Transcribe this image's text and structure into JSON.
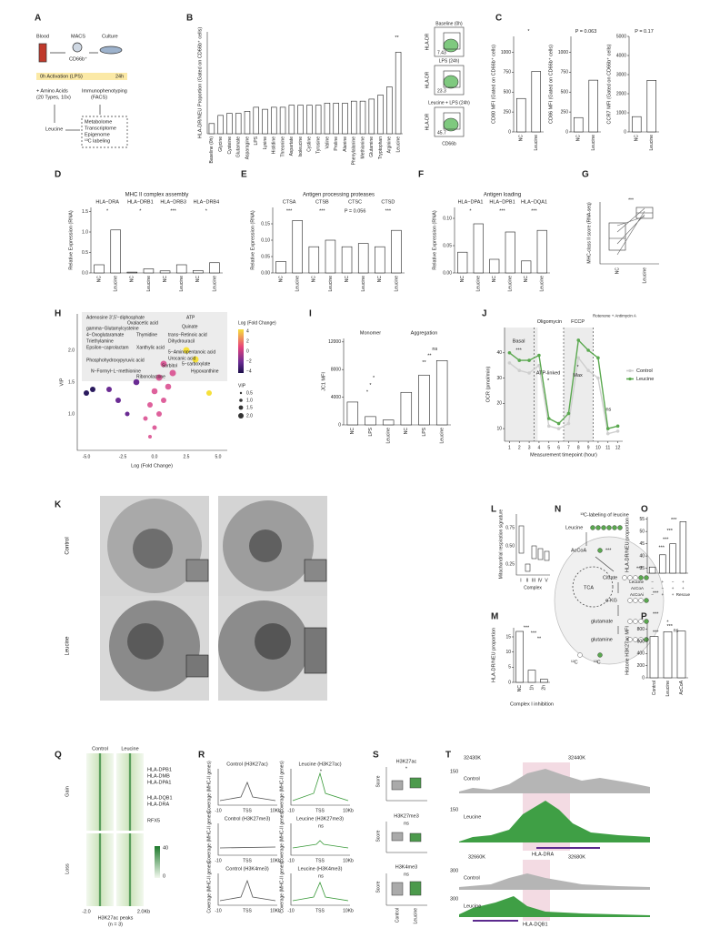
{
  "chart_data": [
    {
      "type": "bar",
      "ylabel": "HLA-DR/NEU Proportion (Gated on CD66b⁺ cells)",
      "categories": [
        "Baseline (0h)",
        "Glycine",
        "Cysteine",
        "Glutamate",
        "Asparagine",
        "LPS",
        "Lysine",
        "Histidine",
        "Threonine",
        "Aspartate",
        "Isoleucine",
        "Cystine",
        "Tyrosine",
        "Valine",
        "Proline",
        "Alanine",
        "Phenylalanine",
        "Methionine",
        "Glutamine",
        "Tryptophan",
        "Arginine",
        "Leucine"
      ],
      "values": [
        0.05,
        0.09,
        0.1,
        0.1,
        0.11,
        0.13,
        0.12,
        0.13,
        0.13,
        0.14,
        0.14,
        0.14,
        0.14,
        0.15,
        0.15,
        0.15,
        0.16,
        0.16,
        0.17,
        0.19,
        0.23,
        0.4
      ],
      "color": "#ffffff",
      "ylim": [
        0,
        0.5
      ],
      "annotations": [
        "**"
      ]
    },
    {
      "type": "bar",
      "ylabel": "CD80 MFI (Gated on CD66b⁺ cells)",
      "categories": [
        "NC",
        "Leucine"
      ],
      "values": [
        420,
        760
      ],
      "color": "#ffffff",
      "ylim": [
        0,
        1200
      ],
      "yticks": [
        0,
        250,
        500,
        750,
        1000
      ],
      "annotations": [
        "*"
      ]
    },
    {
      "type": "bar",
      "ylabel": "CD86 MFI (Gated on CD66b⁺ cells)",
      "categories": [
        "NC",
        "Leucine"
      ],
      "values": [
        180,
        650
      ],
      "color": "#ffffff",
      "ylim": [
        0,
        1200
      ],
      "yticks": [
        0,
        250,
        500,
        750,
        1000
      ],
      "annotations": [
        "P = 0.063"
      ]
    },
    {
      "type": "bar",
      "ylabel": "CCR7 MFI (Gated on CD66b⁺ cells)",
      "categories": [
        "NC",
        "Leucine"
      ],
      "values": [
        800,
        2700
      ],
      "color": "#ffffff",
      "ylim": [
        0,
        5000
      ],
      "yticks": [
        0,
        1000,
        2000,
        3000,
        4000,
        5000
      ],
      "annotations": [
        "P = 0.17"
      ]
    },
    {
      "type": "bar",
      "title": "MHC II complex assembly",
      "ylabel": "Relative Expression (RNA)",
      "groups": [
        "HLA−DRA",
        "HLA−DRB1",
        "HLA−DRB3",
        "HLA−DRB4"
      ],
      "categories": [
        "NC",
        "Leucine",
        "NC",
        "Leucine",
        "NC",
        "Leucine",
        "NC",
        "Leucine"
      ],
      "values": [
        0.2,
        1.05,
        0.02,
        0.1,
        0.05,
        0.2,
        0.06,
        0.25
      ],
      "color": "#ffffff",
      "ylim": [
        0,
        1.6
      ],
      "yticks": [
        {
          "value": 0,
          "label": "0.0"
        },
        0.5,
        {
          "value": 1,
          "label": "1.0"
        },
        1.5
      ],
      "annotations": [
        "*",
        "*",
        "***",
        "*"
      ]
    },
    {
      "type": "bar",
      "title": "Antigen processing proteases",
      "ylabel": "Relative Expression (RNA)",
      "groups": [
        "CTSA",
        "CTSB",
        "CTSC",
        "CTSD"
      ],
      "categories": [
        "NC",
        "Leucine",
        "NC",
        "Leucine",
        "NC",
        "Leucine",
        "NC",
        "Leucine"
      ],
      "values": [
        0.035,
        0.16,
        0.08,
        0.1,
        0.08,
        0.09,
        0.08,
        0.13
      ],
      "color": "#ffffff",
      "ylim": [
        0,
        0.2
      ],
      "yticks": [
        {
          "value": 0,
          "label": "0.00"
        },
        0.05,
        {
          "value": 0.1,
          "label": "0.10"
        },
        0.15
      ],
      "annotations": [
        "***",
        "***",
        "P = 0.056",
        "***"
      ]
    },
    {
      "type": "bar",
      "title": "Antigen loading",
      "ylabel": "Relative Expression (RNA)",
      "groups": [
        "HLA−DPA1",
        "HLA−DPB1",
        "HLA−DQA1"
      ],
      "categories": [
        "NC",
        "Leucine",
        "NC",
        "Leucine",
        "NC",
        "Leucine"
      ],
      "values": [
        0.038,
        0.09,
        0.025,
        0.075,
        0.022,
        0.078
      ],
      "color": "#ffffff",
      "ylim": [
        0,
        0.12
      ],
      "yticks": [
        {
          "value": 0,
          "label": "0.00"
        },
        0.05,
        {
          "value": 0.1,
          "label": "0.10"
        }
      ],
      "annotations": [
        "*",
        "***",
        "***"
      ]
    },
    {
      "type": "bar",
      "ylabel": "JC1 MFI",
      "groups": [
        "Monomer",
        "Aggregation"
      ],
      "categories": [
        "NC",
        "LPS",
        "Leucine",
        "NC",
        "LPS",
        "Leucine"
      ],
      "values": [
        3300,
        1200,
        700,
        4700,
        7200,
        9300
      ],
      "color": "#ffffff",
      "ylim": [
        0,
        12500
      ],
      "yticks": [
        0,
        4000,
        8000,
        12000
      ],
      "annotations": [
        "*",
        "*",
        "*",
        "**",
        "**",
        "ns"
      ]
    },
    {
      "type": "line",
      "ylabel": "OCR (pmol/min)",
      "xlabel": "Measurement timepoint (hour)",
      "x": [
        1,
        2,
        3,
        4,
        5,
        6,
        7,
        8,
        9,
        10,
        11,
        12
      ],
      "xlim": [
        0.5,
        12.5
      ],
      "xticks": [
        1,
        2,
        3,
        4,
        5,
        6,
        7,
        8,
        9,
        10,
        11,
        12
      ],
      "ylim": [
        5,
        50
      ],
      "yticks": [
        10,
        20,
        30,
        40
      ],
      "legend": "right",
      "series": [
        {
          "name": "Control",
          "color": "#cfcfcf",
          "values": [
            36,
            33,
            32,
            35,
            11,
            10,
            12,
            38,
            33,
            30,
            8,
            9
          ]
        },
        {
          "name": "Leucine",
          "color": "#5aa84f",
          "values": [
            40,
            37,
            37,
            39,
            14,
            12,
            16,
            45,
            41,
            38,
            10,
            11
          ]
        }
      ],
      "annotations": [
        "Oligomycin",
        "FCCP",
        "Rotenone + Antimycin A",
        "Basal",
        "***",
        "ATP-linked",
        "*",
        "Max",
        "*",
        "ns"
      ]
    },
    {
      "type": "bar",
      "ylabel": "HLA-DR/NEU proportion",
      "xlabel": "Complex I inhibition",
      "categories": [
        "NC",
        "1h",
        "2h"
      ],
      "values": [
        16.8,
        4.0,
        1.0
      ],
      "color": "#ffffff",
      "ylim": [
        0,
        18
      ],
      "yticks": [
        0,
        5,
        10,
        15
      ],
      "annotations": [
        "***",
        "***",
        "**"
      ]
    },
    {
      "type": "bar",
      "ylabel": "HLA-DR/NEU proportion",
      "categories": [
        null,
        null,
        null,
        null
      ],
      "values": [
        35.5,
        40.5,
        45,
        54
      ],
      "color": "#ffffff",
      "ylim": [
        33,
        56
      ],
      "yticks": [
        35,
        40,
        45,
        50,
        55
      ],
      "annotations": [
        "***",
        "***",
        "***",
        "***"
      ]
    },
    {
      "type": "bar",
      "ylabel": "Histone H3K27ac MFI",
      "categories": [
        "Control",
        "Leucine",
        "AcCoA"
      ],
      "values": [
        680,
        760,
        770
      ],
      "color": "#ffffff",
      "ylim": [
        0,
        900
      ],
      "yticks": [
        0,
        200,
        400,
        600,
        800
      ],
      "annotations": [
        "*",
        "***",
        "ns"
      ]
    }
  ],
  "figure": {
    "panel_labels": [
      "A",
      "B",
      "C",
      "D",
      "E",
      "F",
      "G",
      "H",
      "I",
      "J",
      "K",
      "L",
      "M",
      "N",
      "O",
      "P",
      "Q",
      "R",
      "S",
      "T"
    ],
    "A": [
      "Blood",
      "MACS",
      "Culture",
      "CD66b⁺",
      "0h Activation (LPS)",
      "24h",
      "+ Amino Acids",
      "(20 Types, 10x)",
      "Immunophenotyping",
      "(FACS)",
      "Leucine",
      "Metabolome",
      "Transcriptome",
      "Epigenome",
      "¹³C labeling"
    ],
    "B_facs": [
      "Baseline (0h)",
      "HLA-DR",
      "7.43",
      "LPS (24h)",
      "HLA-DR",
      "23.3",
      "Leucine + LPS (24h)",
      "HLA-DR",
      "45.7",
      "CD66b"
    ],
    "G": [
      "MHC-class II score (RNA-seq)",
      "NC",
      "Leucine",
      "***"
    ],
    "H": {
      "labels": [
        "Adenosine 3',5'−diphosphate",
        "ATP",
        "Oxalacetic acid",
        "gamma−Glutamylcysteine",
        "Quinate",
        "4−Oxoglutaramate",
        "Thymidine",
        "trans−Retinoic acid",
        "Triethylamine",
        "Dihydrouracil",
        "Epsilon−caprolactam",
        "Xanthylic acid",
        "5−Aminopentanoic acid",
        "Urocanic acid",
        "5−carboxylate",
        "Phosphohydroxypyruvic acid",
        "Sorbitol",
        "N−Formyl−L−methionine",
        "Hypoxanthine",
        "Ribonolactone"
      ],
      "axis": [
        "Log (Fold Change)",
        "VIP",
        "-5.0",
        "-2.5",
        "0.0",
        "2.5",
        "5.0",
        "1.0",
        "1.5",
        "2.0"
      ],
      "legend": [
        "Log (Fold Change)",
        "4",
        "2",
        "0",
        "−2",
        "−4",
        "VIP",
        "0.5",
        "1.0",
        "1.5",
        "2.0"
      ]
    },
    "K": [
      "Control",
      "Leucine"
    ],
    "L": [
      "Mitochondrial respiration signature",
      "0.75",
      "0.50",
      "0.25",
      "I",
      "II",
      "III",
      "IV",
      "V",
      "Complex"
    ],
    "N": [
      "¹³C-labeling of leucine",
      "Leucine",
      "AcCoA",
      "***",
      "TCA",
      "Citrate",
      "***",
      "α-KG",
      "***",
      "glutamate",
      "***",
      "glutamine",
      "***",
      "¹²C",
      "¹³C"
    ],
    "O_conditions": [
      "Leucine",
      "−",
      "+",
      "−",
      "+",
      "AcCoA",
      "−",
      "−",
      "+",
      "+",
      "AcCoAi",
      "−",
      "+",
      "+",
      "Rescue"
    ],
    "Q": [
      "Control",
      "Leucine",
      "HLA-DPB1",
      "HLA-DMB",
      "HLA-DPA1",
      "HLA-DQB1",
      "HLA-DRA",
      "RFX5",
      "Gain",
      "Loss",
      "40",
      "0",
      "-2.0",
      "2.0Kb",
      "H3K27ac peaks",
      "(n = 3)"
    ],
    "R": {
      "titles": [
        "Control (H3K27ac)",
        "Leucine (H3K27ac)",
        "Control (H3K27me3)",
        "Leucine (H3K27me3)",
        "Control (H3K4me3)",
        "Leucine (H3K4me3)"
      ],
      "ylabel": "Coverage (MHC-II genes)",
      "xticks": [
        "-10",
        "TSS",
        "10Kb"
      ],
      "marks": [
        "*",
        "ns",
        "ns"
      ]
    },
    "S": {
      "titles": [
        "H3K27ac",
        "H3K27me3",
        "H3K4me3"
      ],
      "ylabel": "Score",
      "marks": [
        "*",
        "ns",
        "ns"
      ],
      "categories": [
        "Control",
        "Leucine"
      ]
    },
    "T": [
      "32430K",
      "32440K",
      "150",
      "Control",
      "150",
      "Leucine",
      "HLA-DRA",
      "32660K",
      "32680K",
      "300",
      "Control",
      "300",
      "Leucine",
      "HLA-DQB1"
    ]
  }
}
